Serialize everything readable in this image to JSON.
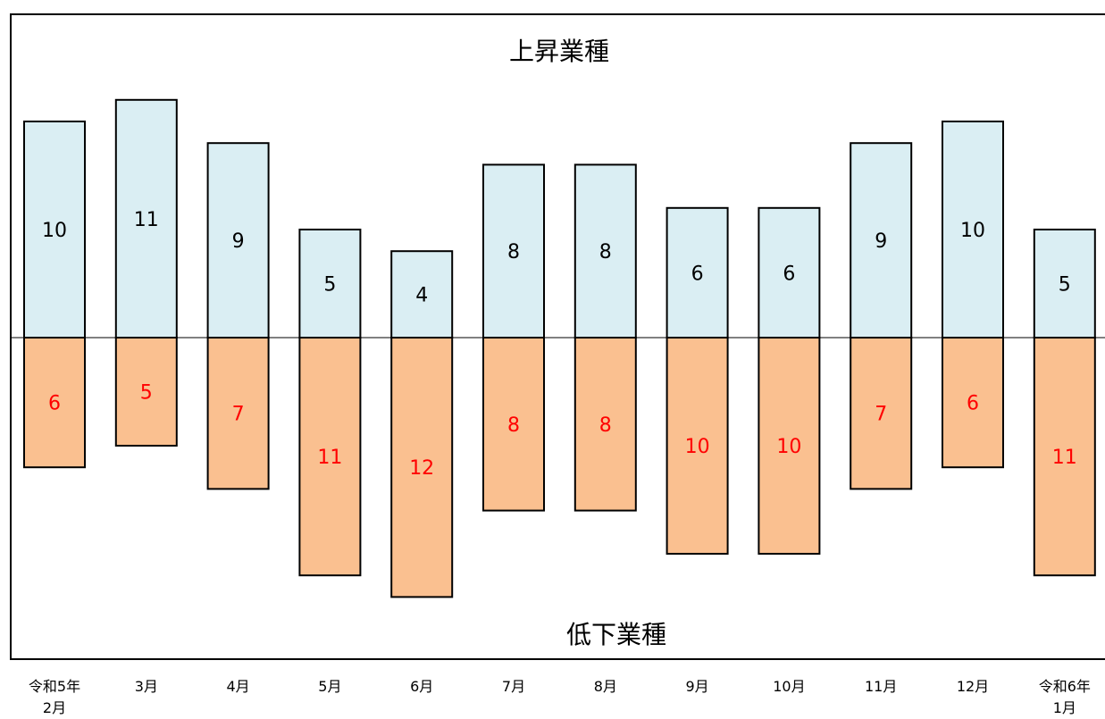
{
  "chart_data": {
    "type": "bar",
    "title": "上昇業種",
    "bottom_title": "低下業種",
    "categories": [
      [
        "令和5年",
        "2月"
      ],
      [
        "3月"
      ],
      [
        "4月"
      ],
      [
        "5月"
      ],
      [
        "6月"
      ],
      [
        "7月"
      ],
      [
        "8月"
      ],
      [
        "9月"
      ],
      [
        "10月"
      ],
      [
        "11月"
      ],
      [
        "12月"
      ],
      [
        "令和6年",
        "1月"
      ]
    ],
    "series": [
      {
        "values": [
          10,
          11,
          9,
          5,
          4,
          8,
          8,
          6,
          6,
          9,
          10,
          5
        ],
        "color": "#daeef3",
        "label_color": "#000000",
        "direction": "up"
      },
      {
        "values": [
          6,
          5,
          7,
          11,
          12,
          8,
          8,
          10,
          10,
          7,
          6,
          11
        ],
        "color": "#fac090",
        "label_color": "#ff0000",
        "direction": "down"
      }
    ],
    "ylim": [
      -12,
      11
    ],
    "grid": false,
    "legend": "none"
  }
}
